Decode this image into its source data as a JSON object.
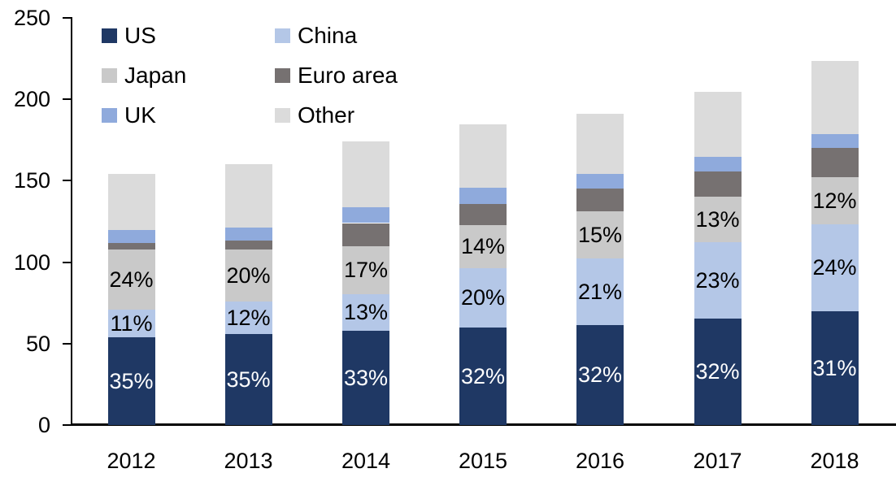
{
  "chart_data": {
    "type": "bar",
    "stacked": true,
    "title": "",
    "xlabel": "",
    "ylabel": "",
    "background_color": "#FFFFFF",
    "axis_color": "#000000",
    "grid": false,
    "ylim": [
      0,
      250
    ],
    "ytick_labels": [
      "0",
      "50",
      "100",
      "150",
      "200",
      "250"
    ],
    "ytick_values": [
      0,
      50,
      100,
      150,
      200,
      250
    ],
    "categories": [
      "2012",
      "2013",
      "2014",
      "2015",
      "2016",
      "2017",
      "2018"
    ],
    "series": [
      {
        "name": "US",
        "color": "#1F3864",
        "values": [
          54,
          56,
          58,
          60,
          61.5,
          65.5,
          70
        ],
        "segment_labels": [
          "35%",
          "35%",
          "33%",
          "32%",
          "32%",
          "32%",
          "31%"
        ],
        "segment_label_color": "#FFFFFF"
      },
      {
        "name": "China",
        "color": "#B4C7E7",
        "values": [
          17,
          20,
          22.5,
          36.5,
          41,
          47,
          53.5
        ],
        "segment_labels": [
          "11%",
          "12%",
          "13%",
          "20%",
          "21%",
          "23%",
          "24%"
        ],
        "segment_label_color": "#000000"
      },
      {
        "name": "Japan",
        "color": "#C9C9C9",
        "values": [
          37,
          32,
          29.5,
          26.5,
          28.5,
          27.5,
          28.5
        ],
        "segment_labels": [
          "24%",
          "20%",
          "17%",
          "14%",
          "15%",
          "13%",
          "12%"
        ],
        "segment_label_color": "#000000"
      },
      {
        "name": "Euro area",
        "color": "#767171",
        "values": [
          4,
          5.5,
          14,
          12.5,
          14,
          15.5,
          18
        ],
        "segment_labels": null,
        "segment_label_color": null
      },
      {
        "name": "UK",
        "color": "#8FAADC",
        "values": [
          8,
          8,
          9.5,
          10,
          9,
          9,
          8.5
        ],
        "segment_labels": null,
        "segment_label_color": null
      },
      {
        "name": "Other",
        "color": "#DBDBDB",
        "values": [
          34,
          38.5,
          40.5,
          39,
          37,
          40,
          45
        ],
        "segment_labels": null,
        "segment_label_color": null
      }
    ],
    "legend": {
      "position": "top-left",
      "columns": 2,
      "order": [
        "US",
        "China",
        "Japan",
        "Euro area",
        "UK",
        "Other"
      ]
    }
  }
}
